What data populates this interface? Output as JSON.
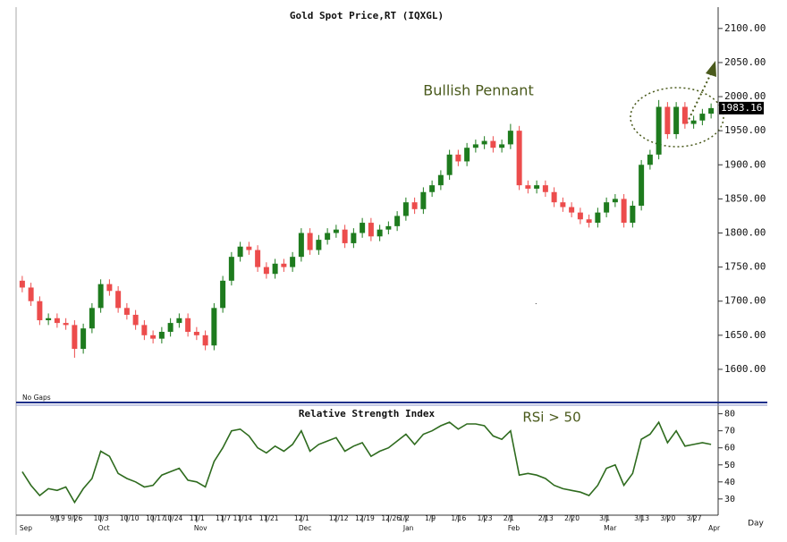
{
  "chart_data": [
    {
      "type": "candlestick",
      "title": "Gold Spot Price,RT (IQXGL)",
      "annotations": [
        "Bullish Pennant",
        "No Gaps"
      ],
      "x_label": "Day",
      "categories": [
        null,
        null,
        null,
        null,
        "9/19",
        null,
        "9/26",
        null,
        null,
        "10/3",
        null,
        null,
        "10/10",
        null,
        null,
        "10/17",
        null,
        "10/24",
        null,
        null,
        "11/1",
        null,
        null,
        "11/7",
        null,
        "11/14",
        null,
        null,
        "11/21",
        null,
        null,
        null,
        "12/1",
        null,
        null,
        null,
        "12/12",
        null,
        null,
        "12/19",
        null,
        null,
        "12/26",
        null,
        "1/2",
        null,
        null,
        "1/9",
        null,
        null,
        "1/16",
        null,
        null,
        "1/23",
        null,
        null,
        "2/1",
        null,
        null,
        null,
        "2/13",
        null,
        null,
        "2/20",
        null,
        null,
        null,
        "3/1",
        null,
        null,
        null,
        "3/13",
        null,
        null,
        "3/20",
        null,
        null,
        "3/27",
        null,
        null
      ],
      "month_labels": [
        "Sep",
        null,
        null,
        null,
        null,
        null,
        null,
        null,
        null,
        "Oct",
        null,
        null,
        null,
        null,
        null,
        null,
        null,
        null,
        null,
        null,
        "Nov",
        null,
        null,
        null,
        null,
        null,
        null,
        null,
        null,
        null,
        null,
        null,
        "Dec",
        null,
        null,
        null,
        null,
        null,
        null,
        null,
        null,
        null,
        null,
        null,
        "Jan",
        null,
        null,
        null,
        null,
        null,
        null,
        null,
        null,
        null,
        null,
        null,
        "Feb",
        null,
        null,
        null,
        null,
        null,
        null,
        null,
        null,
        null,
        null,
        "Mar",
        null,
        null,
        null,
        null,
        null,
        null,
        null,
        null,
        null,
        null,
        null,
        "Apr"
      ],
      "open": [
        1730,
        1720,
        1700,
        1672,
        1675,
        1668,
        1665,
        1630,
        1660,
        1690,
        1725,
        1715,
        1690,
        1680,
        1665,
        1650,
        1645,
        1655,
        1668,
        1675,
        1655,
        1650,
        1635,
        1690,
        1730,
        1765,
        1780,
        1775,
        1750,
        1740,
        1755,
        1750,
        1765,
        1800,
        1775,
        1790,
        1800,
        1805,
        1785,
        1800,
        1815,
        1795,
        1805,
        1810,
        1825,
        1845,
        1835,
        1860,
        1870,
        1885,
        1915,
        1905,
        1925,
        1930,
        1935,
        1925,
        1930,
        1950,
        1870,
        1865,
        1870,
        1860,
        1845,
        1838,
        1830,
        1820,
        1815,
        1830,
        1845,
        1850,
        1815,
        1840,
        1900,
        1915,
        1985,
        1945,
        1985,
        1960,
        1965,
        1975
      ],
      "high": [
        1737,
        1727,
        1707,
        1682,
        1682,
        1675,
        1672,
        1667,
        1697,
        1732,
        1732,
        1722,
        1697,
        1687,
        1672,
        1657,
        1662,
        1675,
        1682,
        1682,
        1662,
        1657,
        1697,
        1737,
        1772,
        1787,
        1787,
        1782,
        1757,
        1762,
        1762,
        1772,
        1807,
        1807,
        1797,
        1807,
        1812,
        1812,
        1807,
        1822,
        1822,
        1812,
        1817,
        1832,
        1852,
        1852,
        1867,
        1877,
        1892,
        1922,
        1922,
        1932,
        1937,
        1942,
        1942,
        1937,
        1960,
        1957,
        1877,
        1877,
        1877,
        1867,
        1852,
        1845,
        1837,
        1827,
        1837,
        1852,
        1857,
        1857,
        1847,
        1907,
        1922,
        1995,
        1992,
        1992,
        1992,
        1972,
        1982,
        1990
      ],
      "low": [
        1713,
        1693,
        1665,
        1665,
        1661,
        1658,
        1617,
        1623,
        1653,
        1683,
        1708,
        1683,
        1673,
        1658,
        1643,
        1638,
        1638,
        1648,
        1661,
        1648,
        1643,
        1628,
        1628,
        1683,
        1723,
        1758,
        1768,
        1743,
        1733,
        1733,
        1743,
        1743,
        1758,
        1768,
        1768,
        1783,
        1793,
        1778,
        1778,
        1793,
        1788,
        1788,
        1798,
        1803,
        1818,
        1828,
        1828,
        1853,
        1863,
        1878,
        1898,
        1898,
        1918,
        1923,
        1918,
        1918,
        1923,
        1863,
        1858,
        1858,
        1853,
        1838,
        1831,
        1823,
        1813,
        1808,
        1808,
        1823,
        1838,
        1808,
        1808,
        1833,
        1893,
        1908,
        1938,
        1938,
        1953,
        1953,
        1958,
        1968
      ],
      "close": [
        1720,
        1700,
        1672,
        1675,
        1668,
        1665,
        1630,
        1660,
        1690,
        1725,
        1715,
        1690,
        1680,
        1665,
        1650,
        1645,
        1655,
        1668,
        1675,
        1655,
        1650,
        1635,
        1690,
        1730,
        1765,
        1780,
        1775,
        1750,
        1740,
        1755,
        1750,
        1765,
        1800,
        1775,
        1790,
        1800,
        1805,
        1785,
        1800,
        1815,
        1795,
        1805,
        1810,
        1825,
        1845,
        1835,
        1860,
        1870,
        1885,
        1915,
        1905,
        1925,
        1930,
        1935,
        1925,
        1930,
        1950,
        1870,
        1865,
        1870,
        1860,
        1845,
        1838,
        1830,
        1820,
        1815,
        1830,
        1845,
        1850,
        1815,
        1840,
        1900,
        1915,
        1985,
        1945,
        1985,
        1960,
        1965,
        1975,
        1983.16
      ],
      "up_color": "#1e7b1e",
      "down_color": "#ec4c4c",
      "ylim": [
        1554,
        2126
      ],
      "yticks": [
        {
          "value": 1600,
          "label": "1600.00"
        },
        {
          "value": 1650,
          "label": "1650.00"
        },
        {
          "value": 1700,
          "label": "1700.00"
        },
        {
          "value": 1750,
          "label": "1750.00"
        },
        {
          "value": 1800,
          "label": "1800.00"
        },
        {
          "value": 1850,
          "label": "1850.00"
        },
        {
          "value": 1900,
          "label": "1900.00"
        },
        {
          "value": 1950,
          "label": "1950.00"
        },
        {
          "value": 2000,
          "label": "2000.00"
        },
        {
          "value": 2050,
          "label": "2050.00"
        },
        {
          "value": 2100,
          "label": "2100.00"
        }
      ]
    },
    {
      "type": "line",
      "title": "Relative Strength Index",
      "annotations": [
        "RSi > 50"
      ],
      "series": [
        {
          "name": "RSI",
          "color": "#2e6b1e",
          "values": [
            46,
            38,
            32,
            36,
            35,
            37,
            28,
            36,
            42,
            58,
            55,
            45,
            42,
            40,
            37,
            38,
            44,
            46,
            48,
            41,
            40,
            37,
            52,
            60,
            70,
            71,
            67,
            60,
            57,
            61,
            58,
            62,
            70,
            58,
            62,
            64,
            66,
            58,
            61,
            63,
            55,
            58,
            60,
            64,
            68,
            62,
            68,
            70,
            73,
            75,
            71,
            74,
            74,
            73,
            67,
            65,
            70,
            44,
            45,
            44,
            42,
            38,
            36,
            35,
            34,
            32,
            38,
            48,
            50,
            38,
            45,
            65,
            68,
            75,
            63,
            70,
            61,
            62,
            63,
            62
          ]
        }
      ],
      "ylim": [
        21,
        84
      ],
      "yticks": [
        30,
        40,
        50,
        60,
        70,
        80
      ]
    }
  ]
}
